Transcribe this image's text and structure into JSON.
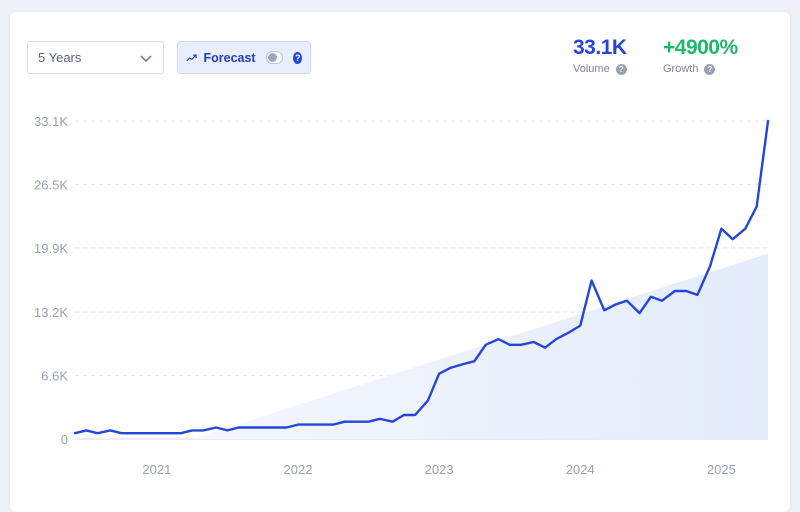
{
  "controls": {
    "period_select": {
      "value": "5 Years"
    },
    "forecast": {
      "label": "Forecast",
      "enabled": false,
      "help": "?"
    }
  },
  "metrics": {
    "volume": {
      "value": "33.1K",
      "label": "Volume",
      "help": "?"
    },
    "growth": {
      "value": "+4900%",
      "label": "Growth",
      "help": "?"
    }
  },
  "colors": {
    "line": "#2546d8",
    "area": "#e3ecfb",
    "growth": "#1fb76a"
  },
  "chart_data": {
    "type": "line",
    "y_tick_labels": [
      "0",
      "6.6K",
      "13.2K",
      "19.9K",
      "26.5K",
      "33.1K"
    ],
    "y_tick_values": [
      0,
      6600,
      13200,
      19900,
      26500,
      33100
    ],
    "ylim": [
      0,
      33100
    ],
    "x_tick_labels": [
      "2021",
      "2022",
      "2023",
      "2024",
      "2025"
    ],
    "x_tick_values": [
      2021.0,
      2022.0,
      2023.0,
      2024.0,
      2025.0
    ],
    "xlim": [
      2020.42,
      2025.33
    ],
    "grid": "horizontal dashed",
    "trend_area": {
      "x": [
        2021.25,
        2025.33
      ],
      "y": [
        0,
        19300
      ]
    },
    "series": [
      {
        "x": [
          2020.42,
          2020.5,
          2020.58,
          2020.67,
          2020.75,
          2020.83,
          2020.92,
          2021.0,
          2021.08,
          2021.17,
          2021.25,
          2021.33,
          2021.42,
          2021.5,
          2021.58,
          2021.67,
          2021.75,
          2021.83,
          2021.92,
          2022.0,
          2022.08,
          2022.17,
          2022.25,
          2022.33,
          2022.42,
          2022.5,
          2022.58,
          2022.67,
          2022.75,
          2022.83,
          2022.92,
          2023.0,
          2023.08,
          2023.17,
          2023.25,
          2023.33,
          2023.42,
          2023.5,
          2023.58,
          2023.67,
          2023.75,
          2023.83,
          2023.92,
          2024.0,
          2024.08,
          2024.17,
          2024.25,
          2024.33,
          2024.42,
          2024.5,
          2024.58,
          2024.67,
          2024.75,
          2024.83,
          2024.92,
          2025.0,
          2025.08,
          2025.17,
          2025.25,
          2025.33
        ],
        "y": [
          600,
          900,
          600,
          900,
          600,
          600,
          600,
          600,
          600,
          600,
          900,
          900,
          1200,
          900,
          1200,
          1200,
          1200,
          1200,
          1200,
          1500,
          1500,
          1500,
          1500,
          1800,
          1800,
          1800,
          2100,
          1800,
          2500,
          2500,
          4000,
          6800,
          7400,
          7800,
          8100,
          9800,
          10400,
          9800,
          9800,
          10100,
          9500,
          10400,
          11100,
          11800,
          16500,
          13400,
          14000,
          14400,
          13100,
          14800,
          14400,
          15400,
          15400,
          15000,
          18000,
          21900,
          20800,
          21900,
          24200,
          33100
        ]
      }
    ]
  }
}
